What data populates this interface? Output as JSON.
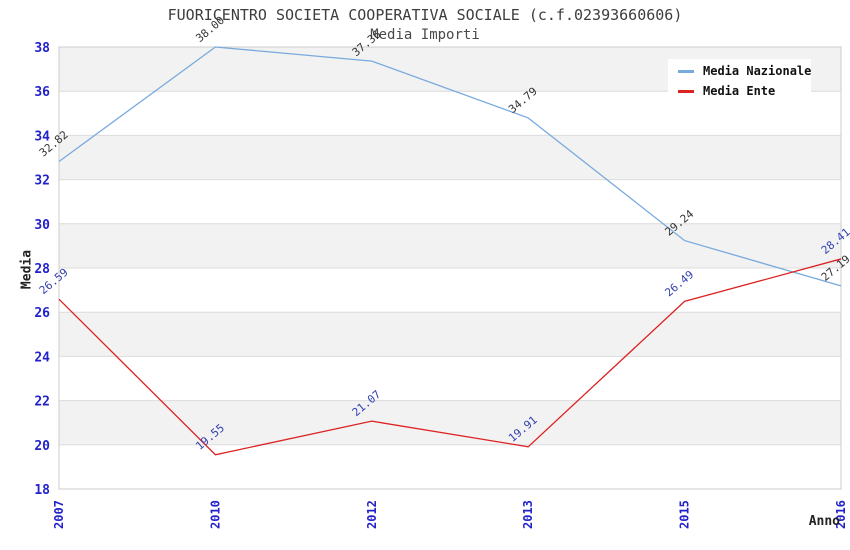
{
  "title": "FUORICENTRO SOCIETA COOPERATIVA SOCIALE (c.f.02393660606)",
  "subtitle": "Media Importi",
  "chart_data": {
    "type": "line",
    "categories": [
      "2007",
      "2010",
      "2012",
      "2013",
      "2015",
      "2016"
    ],
    "series": [
      {
        "name": "Media Nazionale",
        "color": "#79aadd",
        "label_color": "#333333",
        "values": [
          32.82,
          38.0,
          37.36,
          34.79,
          29.24,
          27.19
        ]
      },
      {
        "name": "Media Ente",
        "color": "#dd2222",
        "label_color": "#3340b0",
        "values": [
          26.59,
          19.55,
          21.07,
          19.91,
          26.49,
          28.41
        ]
      }
    ],
    "xlabel": "Anno",
    "ylabel": "Media",
    "ylim": [
      18,
      38
    ],
    "ytick_step": 2,
    "value_label_decimals": 2,
    "legend_position": "top-right",
    "grid": "horizontal",
    "tick_label_color": "#2222cc",
    "band_colors": [
      "#f2f2f2",
      "#ffffff"
    ],
    "gridline_color": "#dcdcdc",
    "plot_border_color": "#cccccc"
  }
}
